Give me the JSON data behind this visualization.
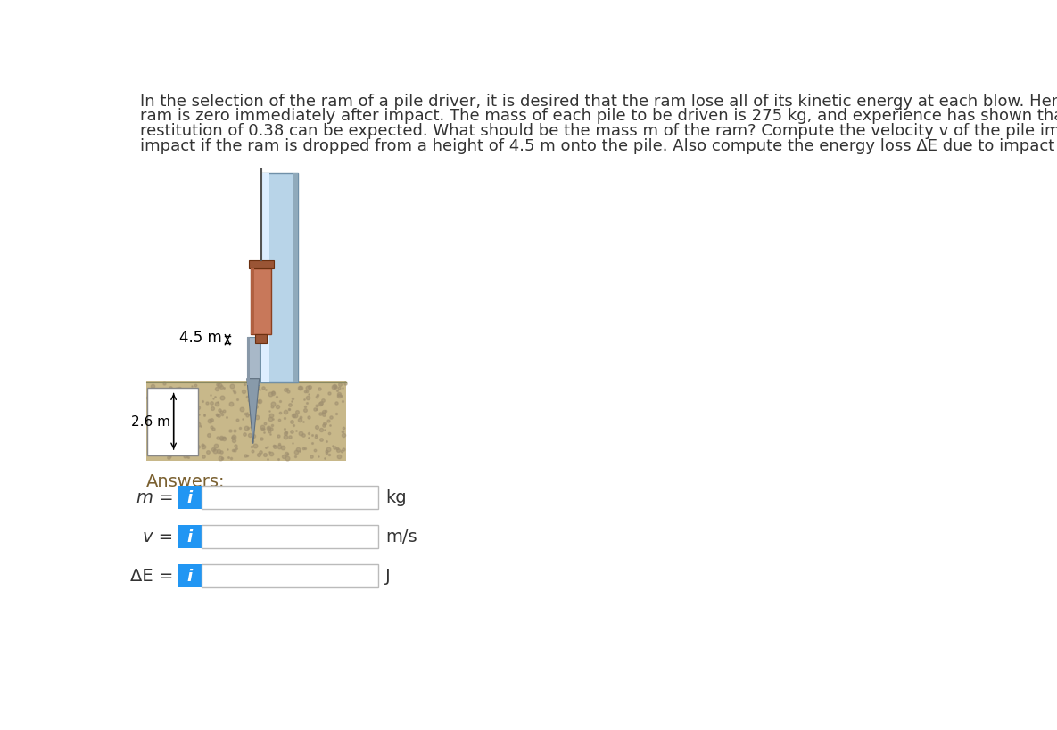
{
  "background_color": "#ffffff",
  "text_color": "#333333",
  "problem_text_line1": "In the selection of the ram of a pile driver, it is desired that the ram lose all of its kinetic energy at each blow. Hence, the velocity of the",
  "problem_text_line2": "ram is zero immediately after impact. The mass of each pile to be driven is 275 kg, and experience has shown that a coefficient of",
  "problem_text_line3": "restitution of 0.38 can be expected. What should be the mass m of the ram? Compute the velocity v of the pile immediately after",
  "problem_text_line4": "impact if the ram is dropped from a height of 4.5 m onto the pile. Also compute the energy loss ΔE due to impact at each blow.",
  "answers_label": "Answers:",
  "answers_color": "#7a6030",
  "label_m": "m =",
  "label_v": "v =",
  "label_de": "ΔE =",
  "unit_m": "kg",
  "unit_v": "m/s",
  "unit_de": "J",
  "info_btn_color": "#2196F3",
  "info_btn_text": "i",
  "box_border_color": "#bbbbbb",
  "height_label": "4.5 m",
  "depth_label": "2.6 m",
  "ram_color": "#c8785a",
  "ram_dark_color": "#9a5535",
  "pile_guide_color": "#b8d4e8",
  "pile_guide_highlight": "#ddeeff",
  "pile_color": "#a8b8c8",
  "pile_dark_color": "#889aaa",
  "ground_color": "#c8b88a",
  "ground_dot_color": "#a09070",
  "cable_color": "#555555",
  "text_fontsize": 13,
  "answers_fontsize": 14,
  "label_fontsize": 14
}
